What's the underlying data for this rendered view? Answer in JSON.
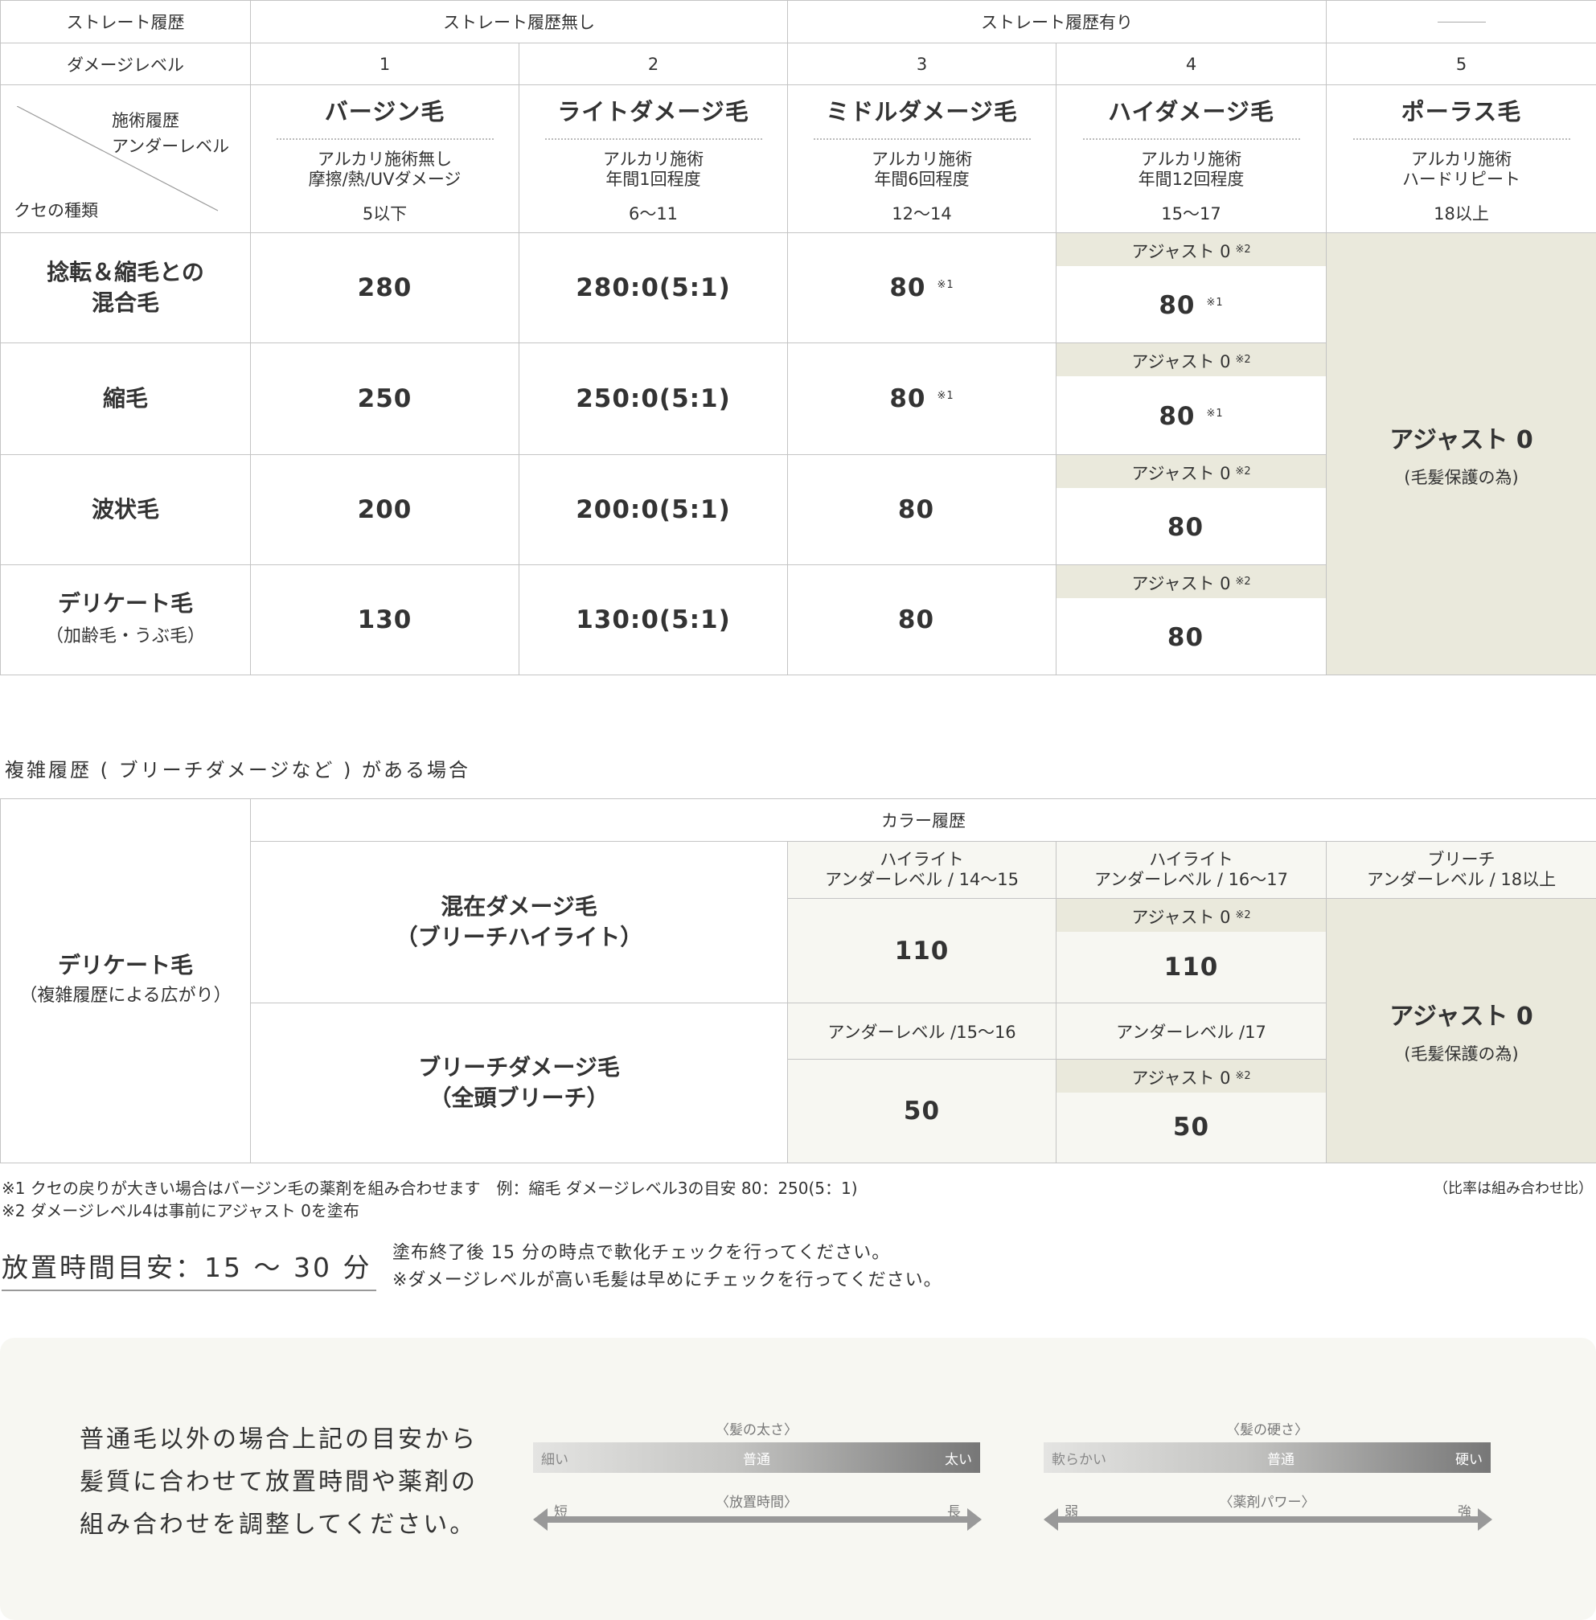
{
  "table1": {
    "header_row1": [
      "ストレート履歴",
      "ストレート履歴無し",
      "ストレート履歴有り",
      "――"
    ],
    "header_row2": {
      "label": "ダメージレベル",
      "levels": [
        "1",
        "2",
        "3",
        "4",
        "5"
      ]
    },
    "corner": {
      "top": "施術履歴",
      "middle": "アンダーレベル",
      "bottom": "クセの種類"
    },
    "columns": [
      {
        "name": "バージン毛",
        "desc1": "アルカリ施術無し",
        "desc2": "摩擦/熱/UVダメージ",
        "range": "5以下"
      },
      {
        "name": "ライトダメージ毛",
        "desc1": "アルカリ施術",
        "desc2": "年間1回程度",
        "range": "6〜11"
      },
      {
        "name": "ミドルダメージ毛",
        "desc1": "アルカリ施術",
        "desc2": "年間6回程度",
        "range": "12〜14"
      },
      {
        "name": "ハイダメージ毛",
        "desc1": "アルカリ施術",
        "desc2": "年間12回程度",
        "range": "15〜17"
      },
      {
        "name": "ポーラス毛",
        "desc1": "アルカリ施術",
        "desc2": "ハードリピート",
        "range": "18以上"
      }
    ],
    "rows": [
      {
        "label": "捻転＆縮毛との混合毛",
        "label_l1": "捻転＆縮毛との",
        "label_l2": "混合毛",
        "v1": "280",
        "v2": "280:0(5:1)",
        "v3": "80",
        "v3_note": "※1",
        "band": "アジャスト 0",
        "band_note": "※2",
        "v4": "80",
        "v4_note": "※1"
      },
      {
        "label_l1": "縮毛",
        "label_l2": "",
        "v1": "250",
        "v2": "250:0(5:1)",
        "v3": "80",
        "v3_note": "※1",
        "band": "アジャスト 0",
        "band_note": "※2",
        "v4": "80",
        "v4_note": "※1"
      },
      {
        "label_l1": "波状毛",
        "label_l2": "",
        "v1": "200",
        "v2": "200:0(5:1)",
        "v3": "80",
        "v3_note": "",
        "band": "アジャスト 0",
        "band_note": "※2",
        "v4": "80",
        "v4_note": ""
      },
      {
        "label_l1": "デリケート毛",
        "label_l2": "（加齢毛・うぶ毛）",
        "v1": "130",
        "v2": "130:0(5:1)",
        "v3": "80",
        "v3_note": "",
        "band": "アジャスト 0",
        "band_note": "※2",
        "v4": "80",
        "v4_note": ""
      }
    ],
    "porous": {
      "main": "アジャスト 0",
      "sub": "(毛髪保護の為)"
    }
  },
  "section2_title": "複雑履歴 ( ブリーチダメージなど ) がある場合",
  "table2": {
    "row_label": "デリケート毛",
    "row_label_sub": "（複雑履歴による広がり）",
    "color_history": "カラー履歴",
    "col_headers": [
      {
        "l1": "ハイライト",
        "l2": "アンダーレベル / 14〜15"
      },
      {
        "l1": "ハイライト",
        "l2": "アンダーレベル / 16〜17"
      },
      {
        "l1": "ブリーチ",
        "l2": "アンダーレベル / 18以上"
      }
    ],
    "mixed": {
      "l1": "混在ダメージ毛",
      "l2": "（ブリーチハイライト）",
      "v1": "110",
      "band": "アジャスト 0",
      "band_note": "※2",
      "v2": "110"
    },
    "bleach": {
      "l1": "ブリーチダメージ毛",
      "l2": "（全頭ブリーチ）",
      "under1": "アンダーレベル /15〜16",
      "under2": "アンダーレベル /17",
      "v1": "50",
      "band": "アジャスト 0",
      "band_note": "※2",
      "v2": "50"
    },
    "adjust": {
      "main": "アジャスト 0",
      "sub": "(毛髪保護の為)"
    }
  },
  "footnotes": [
    "※1  クセの戻りが大きい場合はバージン毛の薬剤を組み合わせます　例：縮毛 ダメージレベル3の目安 80：250(5：1)",
    "※2  ダメージレベル4は事前にアジャスト 0を塗布"
  ],
  "ratio_note": "（比率は組み合わせ比）",
  "time": {
    "label": "放置時間目安：15 〜 30 分",
    "note1": "塗布終了後 15 分の時点で軟化チェックを行ってください。",
    "note2": "※ダメージレベルが高い毛髪は早めにチェックを行ってください。"
  },
  "panel": {
    "text": [
      "普通毛以外の場合上記の目安から",
      "髪質に合わせて放置時間や薬剤の",
      "組み合わせを調整してください。"
    ],
    "scale1": {
      "caption": "〈髪の太さ〉",
      "left": "細い",
      "mid": "普通",
      "right": "太い",
      "arrow_caption": "〈放置時間〉",
      "arrow_left": "短",
      "arrow_right": "長"
    },
    "scale2": {
      "caption": "〈髪の硬さ〉",
      "left": "軟らかい",
      "mid": "普通",
      "right": "硬い",
      "arrow_caption": "〈薬剤パワー〉",
      "arrow_left": "弱",
      "arrow_right": "強"
    }
  },
  "colors": {
    "band": "#eae9dc",
    "table2_bg": "#f7f7f2",
    "border": "#c4c4c4",
    "text": "#333333"
  }
}
